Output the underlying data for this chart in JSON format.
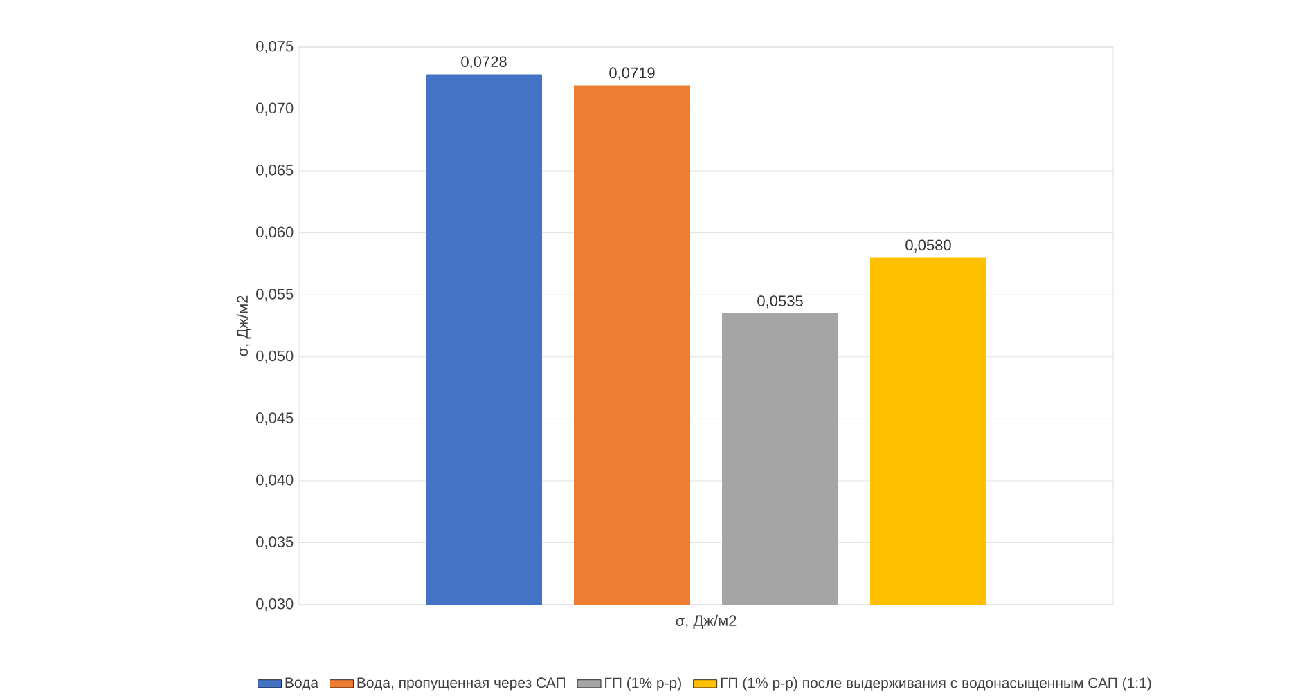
{
  "chart_data": {
    "type": "bar",
    "ylabel": "σ, Дж/м2",
    "xlabel": "σ, Дж/м2",
    "categories": [
      null
    ],
    "series": [
      {
        "name": "Вода",
        "color": "#4472c4",
        "values": [
          0.0728
        ],
        "value_labels": [
          "0,0728"
        ]
      },
      {
        "name": "Вода, пропущенная через САП",
        "color": "#ed7d31",
        "values": [
          0.0719
        ],
        "value_labels": [
          "0,0719"
        ]
      },
      {
        "name": "ГП (1% р-р)",
        "color": "#a5a5a5",
        "values": [
          0.0535
        ],
        "value_labels": [
          "0,0535"
        ]
      },
      {
        "name": "ГП (1% р-р) после выдерживания с водонасыщенным САП (1:1)",
        "color": "#ffc000",
        "values": [
          0.058
        ],
        "value_labels": [
          "0,0580"
        ]
      }
    ],
    "ylim": [
      0.03,
      0.075
    ],
    "yticks": [
      {
        "value": 0.03,
        "label": "0,030"
      },
      {
        "value": 0.035,
        "label": "0,035"
      },
      {
        "value": 0.04,
        "label": "0,040"
      },
      {
        "value": 0.045,
        "label": "0,045"
      },
      {
        "value": 0.05,
        "label": "0,050"
      },
      {
        "value": 0.055,
        "label": "0,055"
      },
      {
        "value": 0.06,
        "label": "0,060"
      },
      {
        "value": 0.065,
        "label": "0,065"
      },
      {
        "value": 0.07,
        "label": "0,070"
      },
      {
        "value": 0.075,
        "label": "0,075"
      }
    ],
    "grid": "y",
    "legend": "bottom"
  }
}
